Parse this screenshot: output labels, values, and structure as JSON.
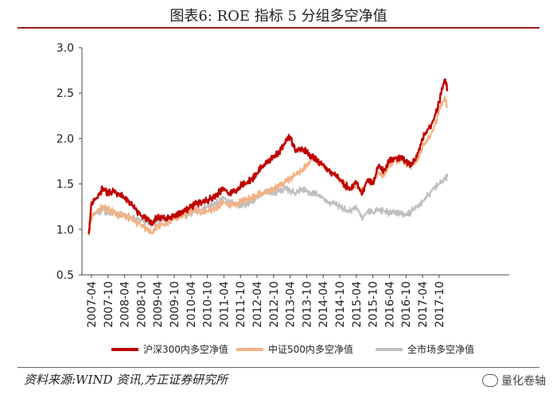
{
  "title": "图表6:   ROE 指标 5 分组多空净值",
  "source": "资料来源:WIND 资讯,方正证券研究所",
  "watermark": "量化卷轴",
  "watermark_icon": "wechat-icon",
  "colors": {
    "hs300": "#c00000",
    "zz500": "#f4b183",
    "all": "#bfbfbf",
    "rule": "#9a1c1c"
  },
  "chart_data": {
    "type": "line",
    "ylim": [
      0.5,
      3.0
    ],
    "yticks": [
      "0.5",
      "1.0",
      "1.5",
      "2.0",
      "2.5",
      "3.0"
    ],
    "xticks": [
      "2007-04",
      "2007-10",
      "2008-04",
      "2008-10",
      "2009-04",
      "2009-10",
      "2010-04",
      "2010-10",
      "2011-04",
      "2011-10",
      "2012-04",
      "2012-10",
      "2013-04",
      "2013-10",
      "2014-04",
      "2014-10",
      "2015-04",
      "2015-10",
      "2016-04",
      "2016-10",
      "2017-04",
      "2017-10"
    ],
    "x": [
      "2007-03",
      "2007-04",
      "2007-06",
      "2007-08",
      "2007-10",
      "2007-12",
      "2008-02",
      "2008-04",
      "2008-06",
      "2008-08",
      "2008-10",
      "2008-12",
      "2009-02",
      "2009-04",
      "2009-06",
      "2009-08",
      "2009-10",
      "2009-12",
      "2010-02",
      "2010-04",
      "2010-06",
      "2010-08",
      "2010-10",
      "2010-12",
      "2011-02",
      "2011-04",
      "2011-06",
      "2011-08",
      "2011-10",
      "2011-12",
      "2012-02",
      "2012-04",
      "2012-06",
      "2012-08",
      "2012-10",
      "2012-12",
      "2013-02",
      "2013-04",
      "2013-06",
      "2013-08",
      "2013-10",
      "2013-12",
      "2014-02",
      "2014-04",
      "2014-06",
      "2014-08",
      "2014-10",
      "2014-12",
      "2015-02",
      "2015-04",
      "2015-06",
      "2015-08",
      "2015-10",
      "2015-12",
      "2016-02",
      "2016-04",
      "2016-06",
      "2016-08",
      "2016-10",
      "2016-12",
      "2017-02",
      "2017-04",
      "2017-06",
      "2017-08",
      "2017-10",
      "2017-12",
      "2018-01"
    ],
    "series": [
      {
        "name": "沪深300内多空净值",
        "key": "hs300",
        "values": [
          0.95,
          1.3,
          1.35,
          1.45,
          1.4,
          1.42,
          1.38,
          1.35,
          1.3,
          1.22,
          1.15,
          1.12,
          1.05,
          1.15,
          1.12,
          1.12,
          1.15,
          1.18,
          1.2,
          1.25,
          1.28,
          1.3,
          1.32,
          1.35,
          1.4,
          1.45,
          1.38,
          1.42,
          1.48,
          1.5,
          1.55,
          1.62,
          1.7,
          1.75,
          1.8,
          1.85,
          1.95,
          2.02,
          1.85,
          1.9,
          1.85,
          1.8,
          1.75,
          1.72,
          1.65,
          1.6,
          1.55,
          1.48,
          1.45,
          1.52,
          1.38,
          1.55,
          1.5,
          1.7,
          1.65,
          1.75,
          1.78,
          1.8,
          1.75,
          1.7,
          1.8,
          2.0,
          2.1,
          2.2,
          2.4,
          2.65,
          2.55
        ]
      },
      {
        "name": "中证500内多空净值",
        "key": "zz500",
        "values": [
          0.95,
          1.15,
          1.2,
          1.25,
          1.22,
          1.2,
          1.15,
          1.15,
          1.12,
          1.08,
          1.05,
          1.0,
          0.95,
          1.05,
          1.05,
          1.08,
          1.12,
          1.14,
          1.15,
          1.2,
          1.22,
          1.18,
          1.2,
          1.22,
          1.25,
          1.3,
          1.25,
          1.28,
          1.3,
          1.32,
          1.35,
          1.38,
          1.4,
          1.42,
          1.45,
          1.48,
          1.52,
          1.55,
          1.6,
          1.65,
          1.7,
          1.8,
          1.75,
          1.7,
          1.65,
          1.6,
          1.55,
          1.5,
          1.45,
          1.48,
          1.42,
          1.55,
          1.5,
          1.62,
          1.6,
          1.7,
          1.75,
          1.78,
          1.72,
          1.7,
          1.75,
          1.9,
          2.0,
          2.1,
          2.3,
          2.45,
          2.35
        ]
      },
      {
        "name": "全市场多空净值",
        "key": "all",
        "values": [
          0.95,
          1.15,
          1.18,
          1.22,
          1.18,
          1.2,
          1.16,
          1.16,
          1.14,
          1.12,
          1.1,
          1.08,
          1.05,
          1.1,
          1.1,
          1.12,
          1.15,
          1.18,
          1.15,
          1.18,
          1.2,
          1.22,
          1.25,
          1.28,
          1.3,
          1.35,
          1.28,
          1.3,
          1.25,
          1.28,
          1.3,
          1.35,
          1.4,
          1.42,
          1.4,
          1.42,
          1.45,
          1.42,
          1.4,
          1.45,
          1.42,
          1.4,
          1.38,
          1.35,
          1.3,
          1.28,
          1.25,
          1.22,
          1.2,
          1.25,
          1.12,
          1.2,
          1.18,
          1.22,
          1.2,
          1.18,
          1.2,
          1.18,
          1.15,
          1.2,
          1.25,
          1.3,
          1.38,
          1.45,
          1.5,
          1.55,
          1.58
        ]
      }
    ],
    "legend_position": "bottom",
    "grid": false
  }
}
